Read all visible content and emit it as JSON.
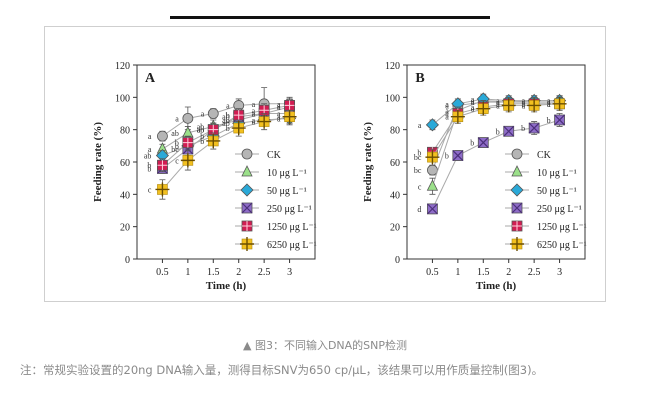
{
  "caption": "▲ 图3：不同输入DNA的SNP检测",
  "note": "注：常规实验设置的20ng DNA输入量，测得目标SNV为650 cp/μL，该结果可以用作质量控制(图3)。",
  "colors": {
    "CK": "#b5b5b5",
    "10": "#9be08a",
    "50": "#2aa9d8",
    "250": "#8e6cc8",
    "1250": "#d11d52",
    "6250": "#f2c020",
    "line": "#aaaaaa"
  },
  "legend": [
    {
      "key": "CK",
      "label": "CK",
      "marker": "circle"
    },
    {
      "key": "10",
      "label": "10 μg L⁻¹",
      "marker": "triangle"
    },
    {
      "key": "50",
      "label": "50 μg L⁻¹",
      "marker": "diamond"
    },
    {
      "key": "250",
      "label": "250 μg L⁻¹",
      "marker": "xsquare"
    },
    {
      "key": "1250",
      "label": "1250 μg L⁻¹",
      "marker": "square"
    },
    {
      "key": "6250",
      "label": "6250 μg L⁻¹",
      "marker": "plus"
    }
  ],
  "chart_data": [
    {
      "type": "line",
      "panel_label": "A",
      "xlabel": "Time (h)",
      "ylabel": "Feeding rate (%)",
      "x": [
        0.5,
        1,
        1.5,
        2,
        2.5,
        3
      ],
      "xlim": [
        0,
        3.5
      ],
      "ylim": [
        0,
        120
      ],
      "yticks": [
        0,
        20,
        40,
        60,
        80,
        100,
        120
      ],
      "xticks": [
        "0.5",
        "1",
        "1.5",
        "2",
        "2.5",
        "3"
      ],
      "series": [
        {
          "key": "CK",
          "values": [
            76,
            87,
            90,
            95,
            96,
            96
          ],
          "err": [
            3,
            7,
            3,
            4,
            10,
            4
          ],
          "letters": [
            "a",
            "a",
            "a",
            "a",
            "a",
            "a"
          ]
        },
        {
          "key": "10",
          "values": [
            68,
            78,
            82,
            86,
            90,
            90
          ],
          "err": [
            3,
            4,
            4,
            4,
            3,
            4
          ],
          "letters": [
            "a",
            "ab",
            "ab",
            "ab",
            "a",
            "a"
          ]
        },
        {
          "key": "50",
          "values": [
            64,
            70,
            76,
            84,
            86,
            87
          ],
          "err": [
            3,
            4,
            3,
            4,
            3,
            4
          ],
          "letters": [
            "ab",
            "b",
            "b",
            "ab",
            "a",
            "a"
          ]
        },
        {
          "key": "250",
          "values": [
            56,
            68,
            80,
            88,
            90,
            94
          ],
          "err": [
            3,
            4,
            4,
            4,
            4,
            4
          ],
          "letters": [
            "b",
            "bc",
            "ab",
            "ab",
            "a",
            "a"
          ]
        },
        {
          "key": "1250",
          "values": [
            58,
            72,
            80,
            89,
            92,
            95
          ],
          "err": [
            4,
            4,
            4,
            4,
            4,
            4
          ],
          "letters": [
            "b",
            "b",
            "ab",
            "b",
            "a",
            "a"
          ]
        },
        {
          "key": "6250",
          "values": [
            43,
            61,
            73,
            81,
            85,
            88
          ],
          "err": [
            6,
            6,
            5,
            5,
            5,
            4
          ],
          "letters": [
            "c",
            "c",
            "b",
            "b",
            "a",
            "a"
          ]
        }
      ]
    },
    {
      "type": "line",
      "panel_label": "B",
      "xlabel": "Time (h)",
      "ylabel": "Feeding rate (%)",
      "x": [
        0.5,
        1,
        1.5,
        2,
        2.5,
        3
      ],
      "xlim": [
        0,
        3.5
      ],
      "ylim": [
        0,
        120
      ],
      "yticks": [
        0,
        20,
        40,
        60,
        80,
        100,
        120
      ],
      "xticks": [
        "0.5",
        "1",
        "1.5",
        "2",
        "2.5",
        "3"
      ],
      "series": [
        {
          "key": "CK",
          "values": [
            55,
            95,
            97,
            97,
            97,
            97
          ],
          "err": [
            3,
            3,
            3,
            3,
            3,
            3
          ],
          "letters": [
            "bc",
            "a",
            "a",
            "a",
            "a",
            "a"
          ]
        },
        {
          "key": "10",
          "values": [
            45,
            92,
            98,
            97,
            98,
            98
          ],
          "err": [
            5,
            4,
            3,
            3,
            3,
            3
          ],
          "letters": [
            "c",
            "a",
            "a",
            "a",
            "a",
            "a"
          ]
        },
        {
          "key": "50",
          "values": [
            83,
            96,
            99,
            98,
            98,
            98
          ],
          "err": [
            3,
            3,
            3,
            3,
            3,
            3
          ],
          "letters": [
            "a",
            "a",
            "a",
            "a",
            "a",
            "a"
          ]
        },
        {
          "key": "250",
          "values": [
            31,
            64,
            72,
            79,
            81,
            86
          ],
          "err": [
            3,
            3,
            3,
            3,
            4,
            4
          ],
          "letters": [
            "d",
            "b",
            "b",
            "b",
            "b",
            "b"
          ]
        },
        {
          "key": "1250",
          "values": [
            66,
            90,
            94,
            96,
            96,
            96
          ],
          "err": [
            3,
            4,
            4,
            4,
            4,
            4
          ],
          "letters": [
            "b",
            "a",
            "a",
            "a",
            "a",
            "a"
          ]
        },
        {
          "key": "6250",
          "values": [
            63,
            88,
            93,
            95,
            95,
            96
          ],
          "err": [
            5,
            4,
            4,
            4,
            4,
            4
          ],
          "letters": [
            "bc",
            "a",
            "a",
            "a",
            "a",
            "a"
          ]
        }
      ]
    }
  ]
}
